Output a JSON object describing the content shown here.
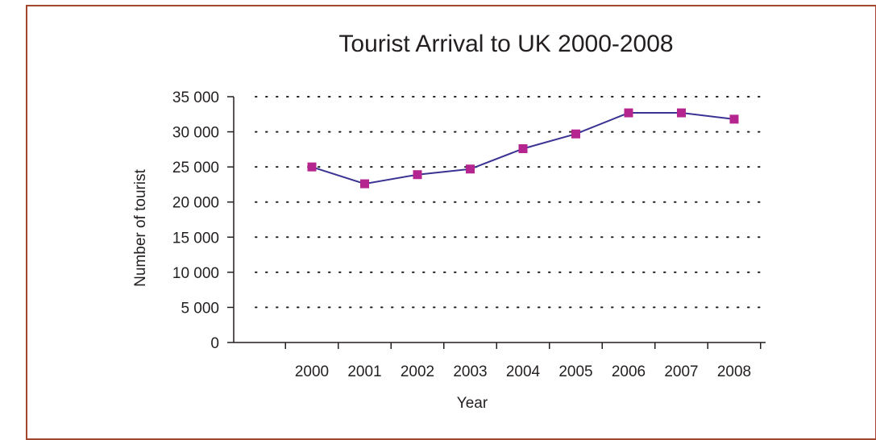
{
  "chart_data": {
    "type": "line",
    "title": "Tourist Arrival to UK 2000-2008",
    "xlabel": "Year",
    "ylabel": "Number of tourist",
    "categories": [
      "2000",
      "2001",
      "2002",
      "2003",
      "2004",
      "2005",
      "2006",
      "2007",
      "2008"
    ],
    "series": [
      {
        "values": [
          25000,
          22600,
          23900,
          24700,
          27600,
          29700,
          32700,
          32700,
          31800
        ]
      }
    ],
    "ylim": [
      0,
      35000
    ],
    "y_ticks": [
      0,
      5000,
      10000,
      15000,
      20000,
      25000,
      30000,
      35000
    ],
    "y_tick_labels": [
      "0",
      "5 000",
      "10 000",
      "15 000",
      "20 000",
      "25 000",
      "30 000",
      "35 000"
    ],
    "grid": "horizontal dotted",
    "line_color": "#3a3393",
    "marker_color": "#b5258f",
    "frame_color": "#a0482f"
  }
}
